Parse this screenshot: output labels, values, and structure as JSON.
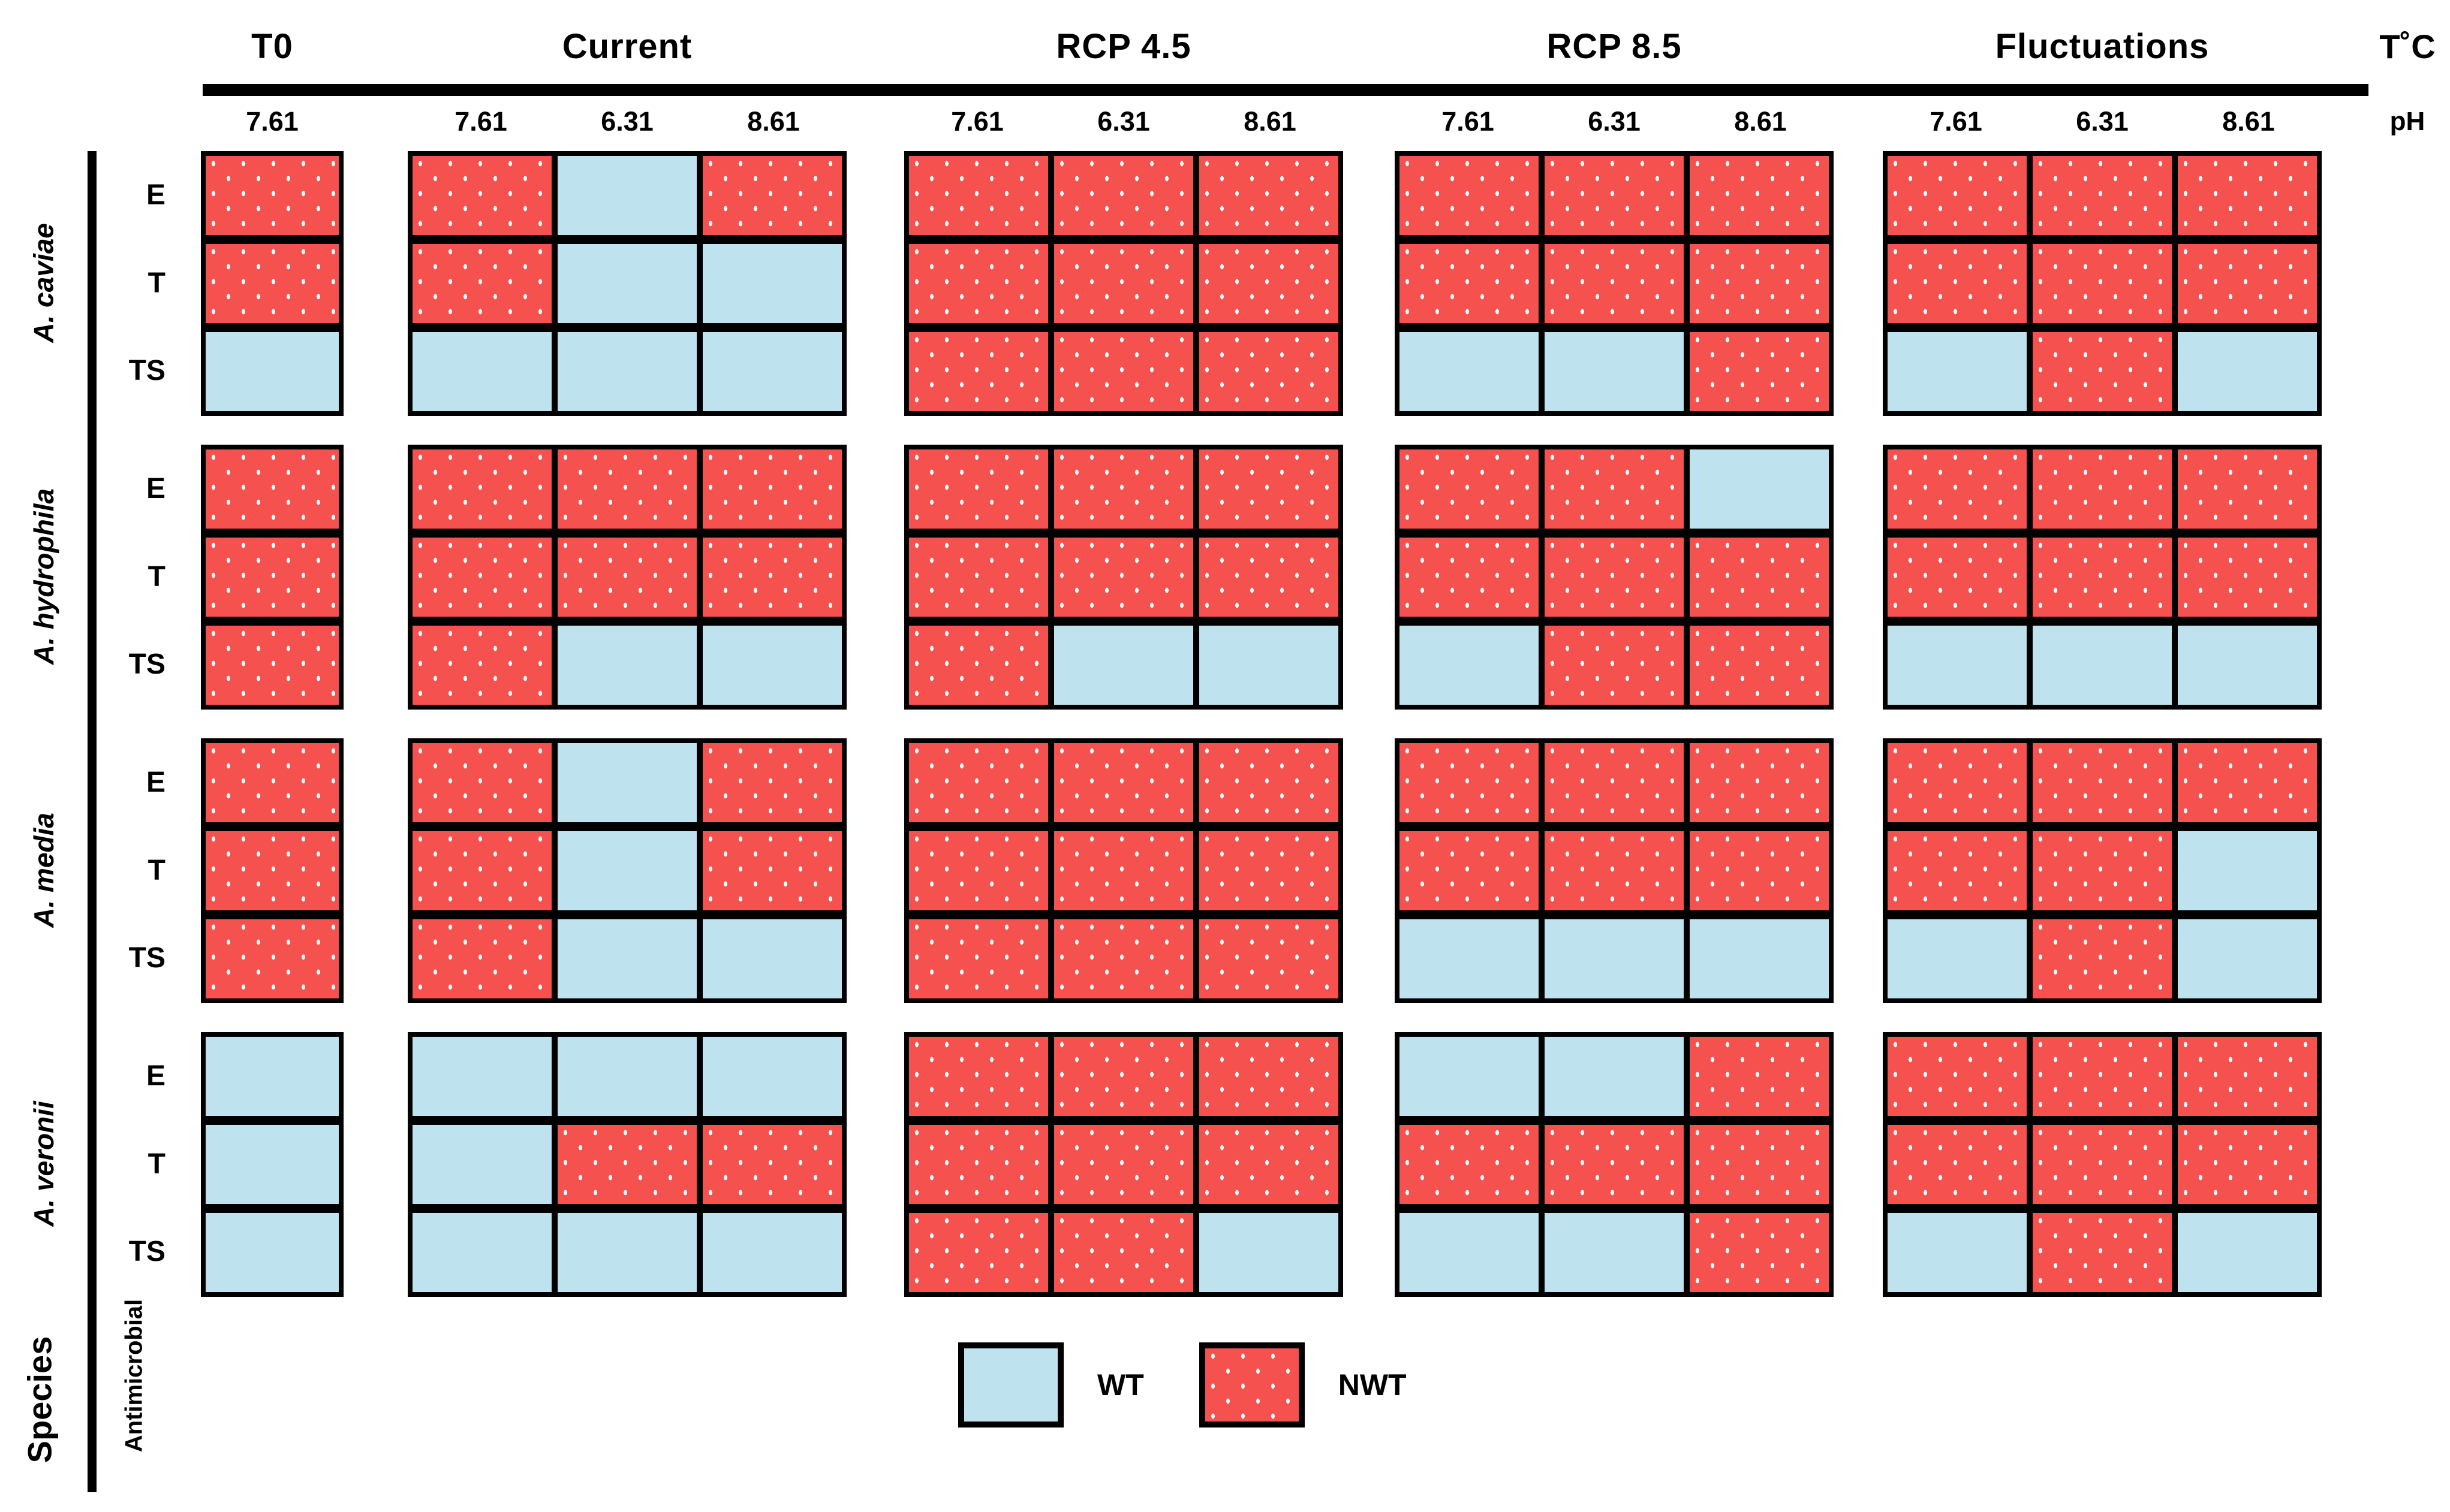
{
  "colors": {
    "wt": "#BEE3EE",
    "nwt": "#F4514F",
    "border": "#000000"
  },
  "chart_data": {
    "type": "heatmap",
    "x_axis": {
      "top_right_label": "T˚C",
      "sub_right_label": "pH",
      "groups": [
        {
          "id": "t0",
          "label": "T0",
          "ph": [
            "7.61"
          ]
        },
        {
          "id": "current",
          "label": "Current",
          "ph": [
            "7.61",
            "6.31",
            "8.61"
          ]
        },
        {
          "id": "rcp45",
          "label": "RCP 4.5",
          "ph": [
            "7.61",
            "6.31",
            "8.61"
          ]
        },
        {
          "id": "rcp85",
          "label": "RCP 8.5",
          "ph": [
            "7.61",
            "6.31",
            "8.61"
          ]
        },
        {
          "id": "fluct",
          "label": "Fluctuations",
          "ph": [
            "7.61",
            "6.31",
            "8.61"
          ]
        }
      ]
    },
    "y_axis": {
      "outer_label": "Species",
      "inner_label": "Antimicrobial",
      "antimicrobials": [
        "E",
        "T",
        "TS"
      ]
    },
    "legend": [
      {
        "label": "WT",
        "state": "WT"
      },
      {
        "label": "NWT",
        "state": "NWT"
      }
    ],
    "matrix": [
      {
        "species": "A. caviae",
        "rows": [
          {
            "ab": "E",
            "t0": [
              "NWT"
            ],
            "current": [
              "NWT",
              "WT",
              "NWT"
            ],
            "rcp45": [
              "NWT",
              "NWT",
              "NWT"
            ],
            "rcp85": [
              "NWT",
              "NWT",
              "NWT"
            ],
            "fluct": [
              "NWT",
              "NWT",
              "NWT"
            ]
          },
          {
            "ab": "T",
            "t0": [
              "NWT"
            ],
            "current": [
              "NWT",
              "WT",
              "WT"
            ],
            "rcp45": [
              "NWT",
              "NWT",
              "NWT"
            ],
            "rcp85": [
              "NWT",
              "NWT",
              "NWT"
            ],
            "fluct": [
              "NWT",
              "NWT",
              "NWT"
            ]
          },
          {
            "ab": "TS",
            "t0": [
              "WT"
            ],
            "current": [
              "WT",
              "WT",
              "WT"
            ],
            "rcp45": [
              "NWT",
              "NWT",
              "NWT"
            ],
            "rcp85": [
              "WT",
              "WT",
              "NWT"
            ],
            "fluct": [
              "WT",
              "NWT",
              "WT"
            ]
          }
        ]
      },
      {
        "species": "A. hydrophila",
        "rows": [
          {
            "ab": "E",
            "t0": [
              "NWT"
            ],
            "current": [
              "NWT",
              "NWT",
              "NWT"
            ],
            "rcp45": [
              "NWT",
              "NWT",
              "NWT"
            ],
            "rcp85": [
              "NWT",
              "NWT",
              "WT"
            ],
            "fluct": [
              "NWT",
              "NWT",
              "NWT"
            ]
          },
          {
            "ab": "T",
            "t0": [
              "NWT"
            ],
            "current": [
              "NWT",
              "NWT",
              "NWT"
            ],
            "rcp45": [
              "NWT",
              "NWT",
              "NWT"
            ],
            "rcp85": [
              "NWT",
              "NWT",
              "NWT"
            ],
            "fluct": [
              "NWT",
              "NWT",
              "NWT"
            ]
          },
          {
            "ab": "TS",
            "t0": [
              "NWT"
            ],
            "current": [
              "NWT",
              "WT",
              "WT"
            ],
            "rcp45": [
              "NWT",
              "WT",
              "WT"
            ],
            "rcp85": [
              "WT",
              "NWT",
              "NWT"
            ],
            "fluct": [
              "WT",
              "WT",
              "WT"
            ]
          }
        ]
      },
      {
        "species": "A. media",
        "rows": [
          {
            "ab": "E",
            "t0": [
              "NWT"
            ],
            "current": [
              "NWT",
              "WT",
              "NWT"
            ],
            "rcp45": [
              "NWT",
              "NWT",
              "NWT"
            ],
            "rcp85": [
              "NWT",
              "NWT",
              "NWT"
            ],
            "fluct": [
              "NWT",
              "NWT",
              "NWT"
            ]
          },
          {
            "ab": "T",
            "t0": [
              "NWT"
            ],
            "current": [
              "NWT",
              "WT",
              "NWT"
            ],
            "rcp45": [
              "NWT",
              "NWT",
              "NWT"
            ],
            "rcp85": [
              "NWT",
              "NWT",
              "NWT"
            ],
            "fluct": [
              "NWT",
              "NWT",
              "WT"
            ]
          },
          {
            "ab": "TS",
            "t0": [
              "NWT"
            ],
            "current": [
              "NWT",
              "WT",
              "WT"
            ],
            "rcp45": [
              "NWT",
              "NWT",
              "NWT"
            ],
            "rcp85": [
              "WT",
              "WT",
              "WT"
            ],
            "fluct": [
              "WT",
              "NWT",
              "WT"
            ]
          }
        ]
      },
      {
        "species": "A. veronii",
        "rows": [
          {
            "ab": "E",
            "t0": [
              "WT"
            ],
            "current": [
              "WT",
              "WT",
              "WT"
            ],
            "rcp45": [
              "NWT",
              "NWT",
              "NWT"
            ],
            "rcp85": [
              "WT",
              "WT",
              "NWT"
            ],
            "fluct": [
              "NWT",
              "NWT",
              "NWT"
            ]
          },
          {
            "ab": "T",
            "t0": [
              "WT"
            ],
            "current": [
              "WT",
              "NWT",
              "NWT"
            ],
            "rcp45": [
              "NWT",
              "NWT",
              "NWT"
            ],
            "rcp85": [
              "NWT",
              "NWT",
              "NWT"
            ],
            "fluct": [
              "NWT",
              "NWT",
              "NWT"
            ]
          },
          {
            "ab": "TS",
            "t0": [
              "WT"
            ],
            "current": [
              "WT",
              "WT",
              "WT"
            ],
            "rcp45": [
              "NWT",
              "NWT",
              "WT"
            ],
            "rcp85": [
              "WT",
              "WT",
              "NWT"
            ],
            "fluct": [
              "WT",
              "NWT",
              "WT"
            ]
          }
        ]
      }
    ]
  }
}
